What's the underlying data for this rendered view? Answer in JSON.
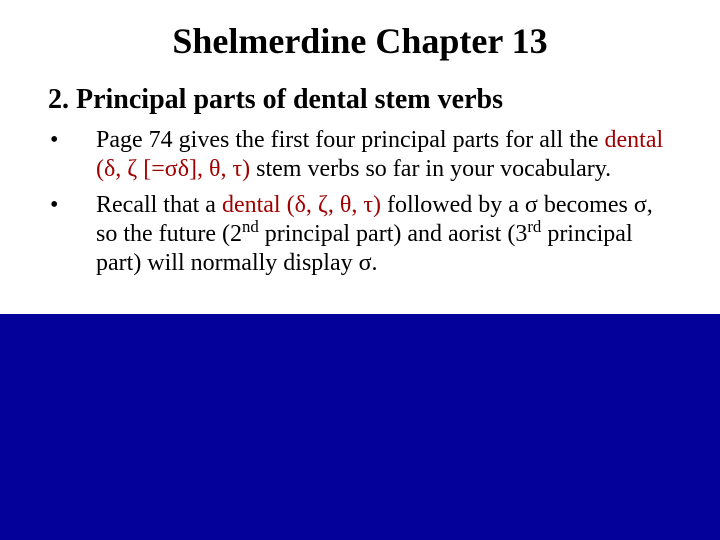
{
  "slide": {
    "background_color": "#03019a",
    "content_background_color": "#ffffff",
    "text_color": "#000000",
    "highlight_color": "#a00000",
    "font_family": "Times New Roman",
    "title": "Shelmerdine Chapter 13",
    "title_fontsize": 36,
    "subhead": "2. Principal parts of dental stem verbs",
    "subhead_fontsize": 28,
    "body_fontsize": 24,
    "bullets": [
      {
        "pre": "Page 74 gives the first four principal parts for all the ",
        "hl": "dental (δ, ζ [=σδ], θ, τ)",
        "post": " stem verbs so far in your vocabulary."
      },
      {
        "pre": "Recall that a ",
        "hl": "dental (δ, ζ, θ, τ)",
        "post_html": " followed by a σ becomes σ, so the future (2<sup>nd</sup> principal part) and aorist (3<sup>rd</sup> principal part) will normally display σ."
      }
    ]
  }
}
